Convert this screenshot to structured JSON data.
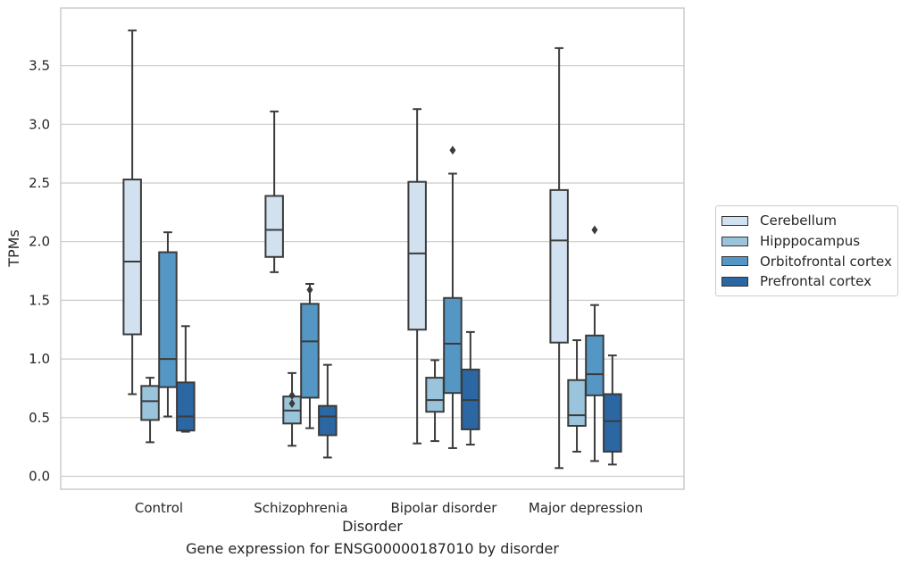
{
  "chart_data": {
    "type": "box",
    "title": "",
    "caption": "Gene expression for ENSG00000187010 by disorder",
    "xlabel": "Disorder",
    "ylabel": "TPMs",
    "categories": [
      "Control",
      "Schizophrenia",
      "Bipolar disorder",
      "Major depression"
    ],
    "ylim": [
      -0.1,
      3.95
    ],
    "yticks": [
      0.0,
      0.5,
      1.0,
      1.5,
      2.0,
      2.5,
      3.0,
      3.5
    ],
    "ytick_labels": [
      "0.0",
      "0.5",
      "1.0",
      "1.5",
      "2.0",
      "2.5",
      "3.0",
      "3.5"
    ],
    "grid": "horizontal",
    "legend_position": "right",
    "series": [
      {
        "name": "Cerebellum",
        "color": "#d1e1f0",
        "boxes": [
          {
            "whislo": 0.7,
            "q1": 1.21,
            "med": 1.83,
            "q3": 2.53,
            "whishi": 3.8,
            "fliers": []
          },
          {
            "whislo": 1.74,
            "q1": 1.87,
            "med": 2.1,
            "q3": 2.39,
            "whishi": 3.11,
            "fliers": []
          },
          {
            "whislo": 0.28,
            "q1": 1.25,
            "med": 1.9,
            "q3": 2.51,
            "whishi": 3.13,
            "fliers": []
          },
          {
            "whislo": 0.07,
            "q1": 1.14,
            "med": 2.01,
            "q3": 2.44,
            "whishi": 3.65,
            "fliers": []
          }
        ]
      },
      {
        "name": "Hipppocampus",
        "color": "#99c4db",
        "boxes": [
          {
            "whislo": 0.29,
            "q1": 0.48,
            "med": 0.64,
            "q3": 0.77,
            "whishi": 0.84,
            "fliers": []
          },
          {
            "whislo": 0.26,
            "q1": 0.45,
            "med": 0.56,
            "q3": 0.68,
            "whishi": 0.88,
            "fliers": [
              0.62,
              0.69
            ]
          },
          {
            "whislo": 0.3,
            "q1": 0.55,
            "med": 0.65,
            "q3": 0.84,
            "whishi": 0.99,
            "fliers": []
          },
          {
            "whislo": 0.21,
            "q1": 0.43,
            "med": 0.52,
            "q3": 0.82,
            "whishi": 1.16,
            "fliers": []
          }
        ]
      },
      {
        "name": "Orbitofrontal cortex",
        "color": "#5597c4",
        "boxes": [
          {
            "whislo": 0.51,
            "q1": 0.76,
            "med": 1.0,
            "q3": 1.91,
            "whishi": 2.08,
            "fliers": []
          },
          {
            "whislo": 0.41,
            "q1": 0.67,
            "med": 1.15,
            "q3": 1.47,
            "whishi": 1.64,
            "fliers": [
              1.59
            ]
          },
          {
            "whislo": 0.24,
            "q1": 0.71,
            "med": 1.13,
            "q3": 1.52,
            "whishi": 2.58,
            "fliers": [
              2.78
            ]
          },
          {
            "whislo": 0.13,
            "q1": 0.69,
            "med": 0.87,
            "q3": 1.2,
            "whishi": 1.46,
            "fliers": [
              2.1
            ]
          }
        ]
      },
      {
        "name": "Prefrontal cortex",
        "color": "#2a67a3",
        "boxes": [
          {
            "whislo": 0.38,
            "q1": 0.39,
            "med": 0.51,
            "q3": 0.8,
            "whishi": 1.28,
            "fliers": []
          },
          {
            "whislo": 0.16,
            "q1": 0.35,
            "med": 0.51,
            "q3": 0.6,
            "whishi": 0.95,
            "fliers": []
          },
          {
            "whislo": 0.27,
            "q1": 0.4,
            "med": 0.65,
            "q3": 0.91,
            "whishi": 1.23,
            "fliers": []
          },
          {
            "whislo": 0.1,
            "q1": 0.21,
            "med": 0.47,
            "q3": 0.7,
            "whishi": 1.03,
            "fliers": []
          }
        ]
      }
    ]
  }
}
